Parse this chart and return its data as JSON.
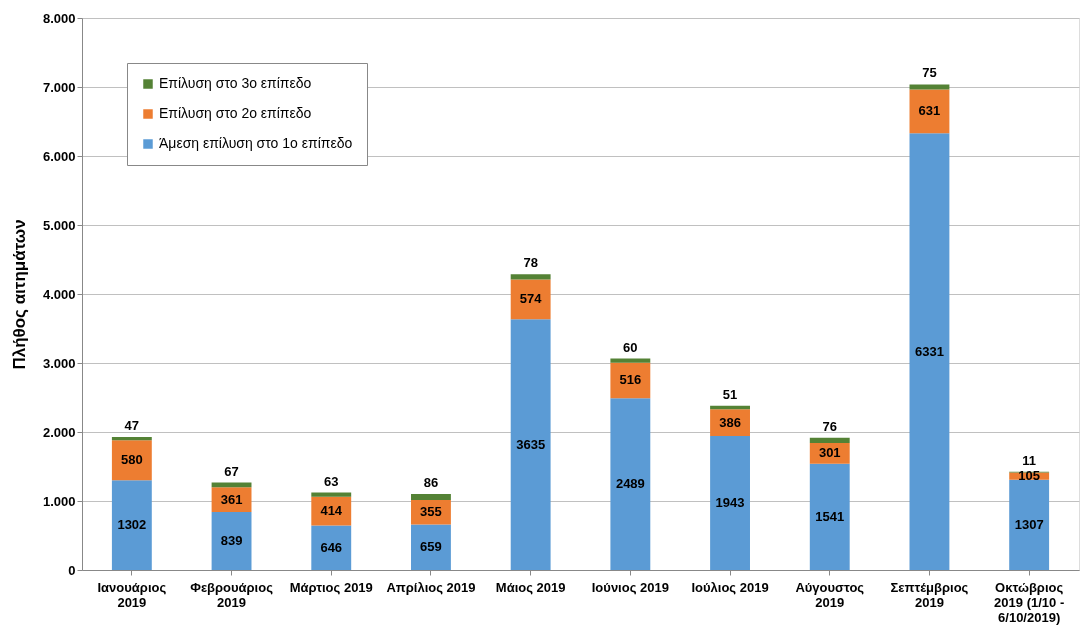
{
  "chart_data": {
    "type": "bar",
    "stacked": true,
    "ylabel": "Πλήθος αιτημάτων",
    "categories": [
      "Ιανουάριος 2019",
      "Φεβρουάριος 2019",
      "Μάρτιος 2019",
      "Απρίλιος 2019",
      "Μάιος 2019",
      "Ιούνιος 2019",
      "Ιούλιος 2019",
      "Αύγουστος 2019",
      "Σεπτέμβριος 2019",
      "Οκτώβριος 2019 (1/10 - 6/10/2019)"
    ],
    "series": [
      {
        "name": "Άμεση επίλυση στο 1ο επίπεδο",
        "color": "#5b9bd5",
        "values": [
          1302,
          839,
          646,
          659,
          3635,
          2489,
          1943,
          1541,
          6331,
          1307
        ]
      },
      {
        "name": "Επίλυση στο 2ο επίπεδο",
        "color": "#ed7d31",
        "values": [
          580,
          361,
          414,
          355,
          574,
          516,
          386,
          301,
          631,
          105
        ]
      },
      {
        "name": "Επίλυση στο 3ο επίπεδο",
        "color": "#548235",
        "values": [
          47,
          67,
          63,
          86,
          78,
          60,
          51,
          76,
          75,
          11
        ]
      }
    ],
    "ylim": [
      0,
      8000
    ],
    "yticks": [
      0,
      {
        "value": 1000,
        "label": "1.000"
      },
      {
        "value": 2000,
        "label": "2.000"
      },
      {
        "value": 3000,
        "label": "3.000"
      },
      {
        "value": 4000,
        "label": "4.000"
      },
      {
        "value": 5000,
        "label": "5.000"
      },
      {
        "value": 6000,
        "label": "6.000"
      },
      {
        "value": 7000,
        "label": "7.000"
      },
      {
        "value": 8000,
        "label": "8.000"
      }
    ],
    "grid": "y",
    "legend": "top left",
    "data_labels": true
  }
}
